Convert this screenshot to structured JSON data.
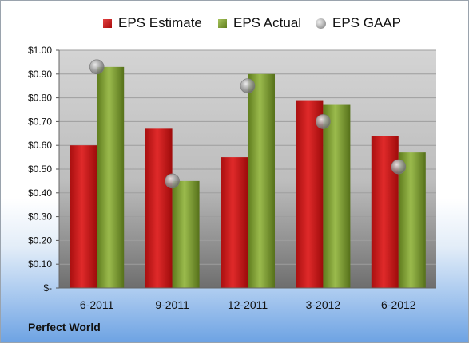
{
  "legend": {
    "estimate": "EPS Estimate",
    "actual": "EPS Actual",
    "gaap": "EPS GAAP"
  },
  "company": "Perfect World",
  "chart_data": {
    "type": "bar",
    "categories": [
      "6-2011",
      "9-2011",
      "12-2011",
      "3-2012",
      "6-2012"
    ],
    "series": [
      {
        "name": "EPS Estimate",
        "kind": "bar",
        "color": "#c41414",
        "values": [
          0.6,
          0.67,
          0.55,
          0.79,
          0.64
        ]
      },
      {
        "name": "EPS Actual",
        "kind": "bar",
        "color": "#7a9a2e",
        "values": [
          0.93,
          0.45,
          0.9,
          0.77,
          0.57
        ]
      },
      {
        "name": "EPS GAAP",
        "kind": "marker",
        "color": "#a0a0a0",
        "values": [
          0.93,
          0.45,
          0.85,
          0.7,
          0.51
        ]
      }
    ],
    "ylim": [
      0,
      1.0
    ],
    "yticks": [
      0,
      0.1,
      0.2,
      0.3,
      0.4,
      0.5,
      0.6,
      0.7,
      0.8,
      0.9,
      1.0
    ],
    "ytick_labels": [
      "$-",
      "$0.10",
      "$0.20",
      "$0.30",
      "$0.40",
      "$0.50",
      "$0.60",
      "$0.70",
      "$0.80",
      "$0.90",
      "$1.00"
    ],
    "legend_position": "top",
    "grid": true
  }
}
